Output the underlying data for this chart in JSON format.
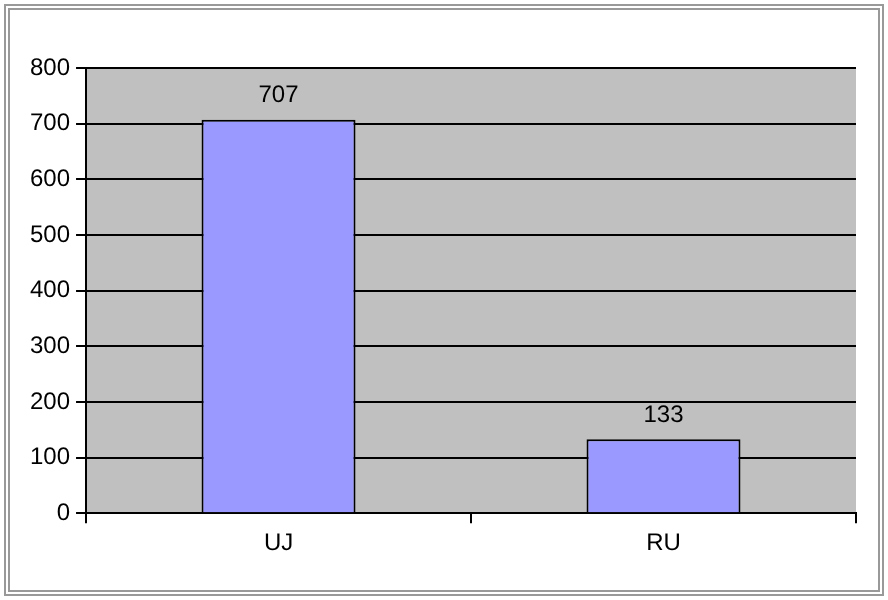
{
  "chart_data": {
    "type": "bar",
    "categories": [
      "UJ",
      "RU"
    ],
    "values": [
      707,
      133
    ],
    "color": "#9999ff",
    "ylim": [
      0,
      800
    ],
    "yticks": [
      0,
      100,
      200,
      300,
      400,
      500,
      600,
      700,
      800
    ],
    "grid": "y",
    "data_labels": true,
    "legend": false
  }
}
